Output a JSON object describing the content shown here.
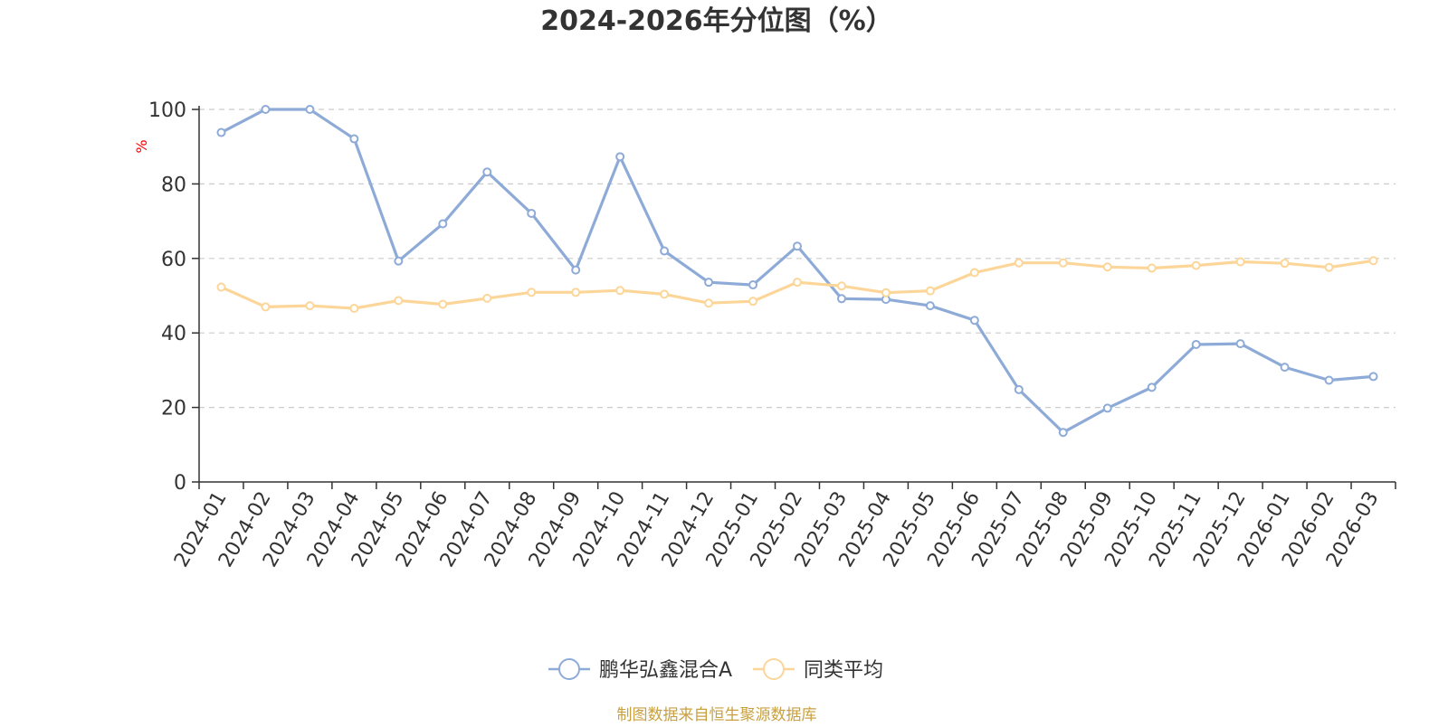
{
  "chart_data": {
    "type": "line",
    "title": "2024-2026年分位图（%）",
    "ylabel": "%",
    "xlabel": "",
    "ylim": [
      0,
      100
    ],
    "yticks": [
      0,
      20,
      40,
      60,
      80,
      100
    ],
    "grid": true,
    "legend_position": "bottom",
    "categories": [
      "2024-01",
      "2024-02",
      "2024-03",
      "2024-04",
      "2024-05",
      "2024-06",
      "2024-07",
      "2024-08",
      "2024-09",
      "2024-10",
      "2024-11",
      "2024-12",
      "2025-01",
      "2025-02",
      "2025-03",
      "2025-04",
      "2025-05",
      "2025-06",
      "2025-07",
      "2025-08",
      "2025-09",
      "2025-10",
      "2025-11",
      "2025-12",
      "2026-01",
      "2026-02",
      "2026-03"
    ],
    "series": [
      {
        "name": "鹏华弘鑫混合A",
        "color": "#8eabd8",
        "values": [
          93.8,
          100,
          100,
          92.1,
          59.3,
          69.3,
          83.2,
          72.1,
          56.9,
          87.3,
          62.0,
          53.6,
          52.9,
          63.3,
          49.2,
          49.0,
          47.3,
          43.4,
          24.8,
          13.3,
          19.8,
          25.4,
          36.9,
          37.1,
          30.8,
          27.3,
          28.3
        ]
      },
      {
        "name": "同类平均",
        "color": "#fcd699",
        "values": [
          52.3,
          47.0,
          47.3,
          46.6,
          48.7,
          47.7,
          49.3,
          50.9,
          50.9,
          51.4,
          50.4,
          48.0,
          48.5,
          53.6,
          52.6,
          50.8,
          51.3,
          56.2,
          58.8,
          58.8,
          57.7,
          57.4,
          58.1,
          59.1,
          58.7,
          57.6,
          59.4
        ]
      }
    ],
    "source_text": "制图数据来自恒生聚源数据库",
    "title_color": "#333333",
    "axis_color": "#333333",
    "grid_color": "#cccccc",
    "ylabel_color": "#ff0000",
    "source_color": "#c8a040"
  }
}
